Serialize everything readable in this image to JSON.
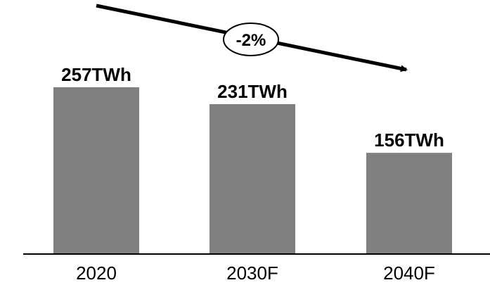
{
  "chart_data": {
    "type": "bar",
    "categories": [
      "2020",
      "2030F",
      "2040F"
    ],
    "values": [
      257,
      231,
      156
    ],
    "value_labels": [
      "257TWh",
      "231TWh",
      "156TWh"
    ],
    "unit": "TWh",
    "title": "",
    "xlabel": "",
    "ylabel": "",
    "ylim": [
      0,
      300
    ],
    "grid": false,
    "legend": "none",
    "colors": {
      "bar": "#808080",
      "axis": "#000000",
      "trend_arrow": "#000000"
    },
    "annotations": [
      {
        "text": "-2%",
        "type": "trend-arrow"
      }
    ]
  }
}
